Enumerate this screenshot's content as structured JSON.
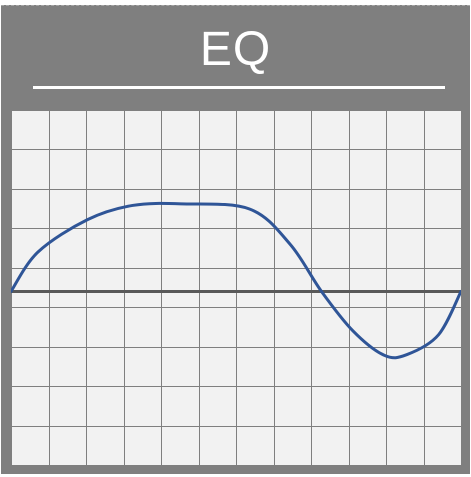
{
  "panel": {
    "title": "EQ"
  },
  "colors": {
    "panel_background": "#7f7f7f",
    "graph_background": "#f2f2f2",
    "grid_line": "#7f7f7f",
    "zero_line": "#595959",
    "curve": "#2f5597",
    "title_text": "#ffffff"
  },
  "graph": {
    "grid": true,
    "columns": 12,
    "rows": 9,
    "zero_row": 4.6,
    "curve_points": [
      [
        0.0,
        0.0
      ],
      [
        0.06,
        1.0
      ],
      [
        0.17,
        1.82
      ],
      [
        0.27,
        2.18
      ],
      [
        0.38,
        2.22
      ],
      [
        0.53,
        2.09
      ],
      [
        0.62,
        1.2
      ],
      [
        0.69,
        0.0
      ],
      [
        0.76,
        -1.0
      ],
      [
        0.83,
        -1.62
      ],
      [
        0.88,
        -1.6
      ],
      [
        0.95,
        -1.1
      ],
      [
        1.0,
        0.0
      ]
    ],
    "y_range": [
      -4.4,
      4.6
    ]
  },
  "icons": {
    "graph": "eq-curve-icon"
  }
}
